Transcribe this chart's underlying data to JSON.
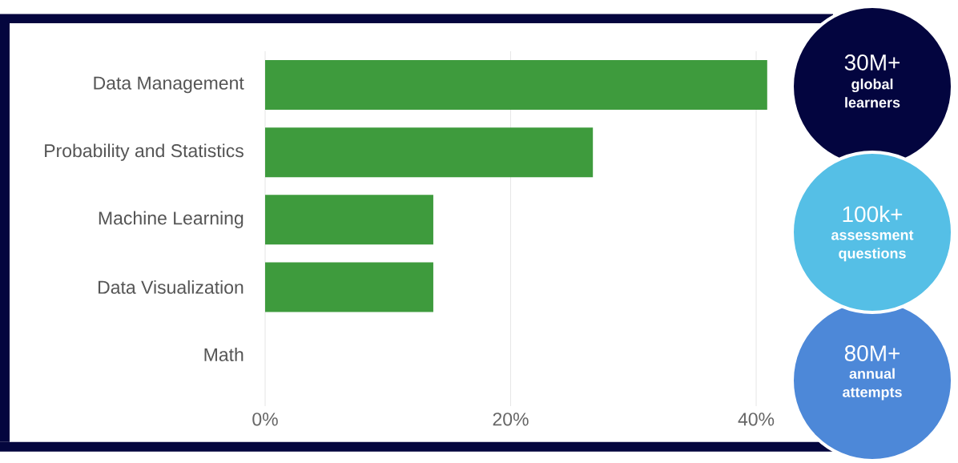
{
  "chart_data": {
    "type": "bar",
    "orientation": "horizontal",
    "categories": [
      "Data Management",
      "Probability and Statistics",
      "Machine Learning",
      "Data Visualization",
      "Math"
    ],
    "values": [
      40.9,
      26.7,
      13.7,
      13.7,
      0
    ],
    "color": "#3e9b3d",
    "xlim": [
      0,
      40.9
    ],
    "xticks": [
      {
        "value": 0,
        "label": "0%"
      },
      {
        "value": 20,
        "label": "20%"
      },
      {
        "value": 40,
        "label": "40%"
      }
    ],
    "grid": "x",
    "annotations": [
      "30M+",
      "global learners",
      "100k+",
      "assessment questions",
      "80M+",
      "annual attempts"
    ]
  }
}
